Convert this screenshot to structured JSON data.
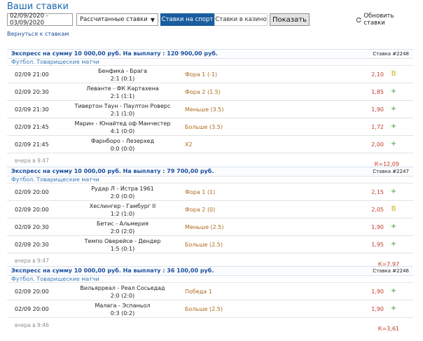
{
  "page": {
    "title": "Ваши ставки",
    "back_link": "Вернуться к ставкам"
  },
  "toolbar": {
    "date_range": "02/09/2020 - 03/09/2020",
    "bet_filter": "Рассчитанные ставки",
    "tab_sport": "Ставки на спорт",
    "tab_casino": "Ставки в казино",
    "show_button": "Показать",
    "refresh_label": "Обновить ставки"
  },
  "colors": {
    "link_blue": "#1a4fa0",
    "accent_blue": "#1a5e9e",
    "odds_red": "#c43a2a",
    "bet_orange": "#b06a1e",
    "won_green": "#2aa13b",
    "refund_yellow": "#c9b417"
  },
  "bets": [
    {
      "title": "Экспресс на сумму 10 000,00 руб. На выплату : 120 900,00 руб.",
      "number": "Ставка #2248",
      "category": "Футбол. Товарищеские матчи",
      "placed": "вчера в 9:47",
      "total": "К=12,09",
      "rows": [
        {
          "time": "02/09 21:00",
          "teams": "Бенфика - Брага",
          "score": "2:1 (0:1)",
          "bet": "Фора 1 (-1)",
          "odds": "2,10",
          "status": "В"
        },
        {
          "time": "02/09 20:30",
          "teams": "Леванте - ФК Картахена",
          "score": "2:1 (1:1)",
          "bet": "Фора 2 (1.5)",
          "odds": "1,85",
          "status": "+"
        },
        {
          "time": "02/09 21:30",
          "teams": "Тивертон Таун - Паултон Роверс",
          "score": "2:1 (1:0)",
          "bet": "Меньше (3.5)",
          "odds": "1,90",
          "status": "+"
        },
        {
          "time": "02/09 21:45",
          "teams": "Марин - Юнайтед оф Манчестер",
          "score": "4:1 (0:0)",
          "bet": "Больше (3.5)",
          "odds": "1,72",
          "status": "+"
        },
        {
          "time": "02/09 21:45",
          "teams": "Фарнборо - Лезерхед",
          "score": "0:0 (0:0)",
          "bet": "Х2",
          "odds": "2,00",
          "status": "+"
        }
      ]
    },
    {
      "title": "Экспресс на сумму 10 000,00 руб. На выплату : 79 700,00 руб.",
      "number": "Ставка #2247",
      "category": "Футбол. Товарищеские матчи",
      "placed": "вчера в 9:47",
      "total": "К=7,97",
      "rows": [
        {
          "time": "02/09 20:00",
          "teams": "Рудар Л - Истра 1961",
          "score": "2:0 (0:0)",
          "bet": "Фора 1 (1)",
          "odds": "2,15",
          "status": "+"
        },
        {
          "time": "02/09 20:00",
          "teams": "Хеслингер - Гамбург II",
          "score": "1:2 (1:0)",
          "bet": "Фора 2 (0)",
          "odds": "2,05",
          "status": "В"
        },
        {
          "time": "02/09 20:30",
          "teams": "Бетис - Альмерия",
          "score": "2:0 (2:0)",
          "bet": "Меньше (2.5)",
          "odds": "1,90",
          "status": "+"
        },
        {
          "time": "02/09 20:30",
          "teams": "Темпо Оверейсе - Дендер",
          "score": "1:5 (0:1)",
          "bet": "Больше (2.5)",
          "odds": "1,95",
          "status": "+"
        }
      ]
    },
    {
      "title": "Экспресс на сумму 10 000,00 руб. На выплату : 36 100,00 руб.",
      "number": "Ставка #2246",
      "category": "Футбол. Товарищеские матчи",
      "placed": "вчера в 9:46",
      "total": "К=3,61",
      "rows": [
        {
          "time": "02/09 20:00",
          "teams": "Вильярреал - Реал Сосьедад",
          "score": "2:0 (2:0)",
          "bet": "Победа 1",
          "odds": "1,90",
          "status": "+"
        },
        {
          "time": "02/09 20:00",
          "teams": "Малага - Эспаньол",
          "score": "0:3 (0:2)",
          "bet": "Больше (2.5)",
          "odds": "1,90",
          "status": "+"
        }
      ]
    }
  ]
}
